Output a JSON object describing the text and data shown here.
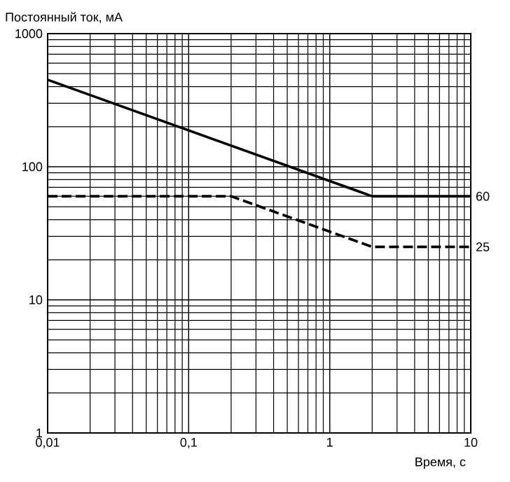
{
  "chart_data": {
    "type": "line",
    "ylabel": "Постоянный ток, мА",
    "xlabel": "Время, с",
    "log": "xy",
    "grid": true,
    "xlim": [
      0.01,
      10
    ],
    "ylim": [
      1,
      1000
    ],
    "xticks": [
      {
        "value": 0.01,
        "label": "0,01"
      },
      {
        "value": 0.1,
        "label": "0,1"
      },
      1,
      10
    ],
    "yticks": [
      1,
      10,
      100,
      1000
    ],
    "series": [
      {
        "name": "60",
        "color": "#000000",
        "line_style": "solid",
        "x": [
          0.01,
          2,
          10
        ],
        "values": [
          450,
          60,
          60
        ]
      },
      {
        "name": "25",
        "color": "#000000",
        "line_style": "dashed",
        "x": [
          0.01,
          0.2,
          2,
          10
        ],
        "values": [
          60,
          60,
          25,
          25
        ]
      }
    ]
  }
}
